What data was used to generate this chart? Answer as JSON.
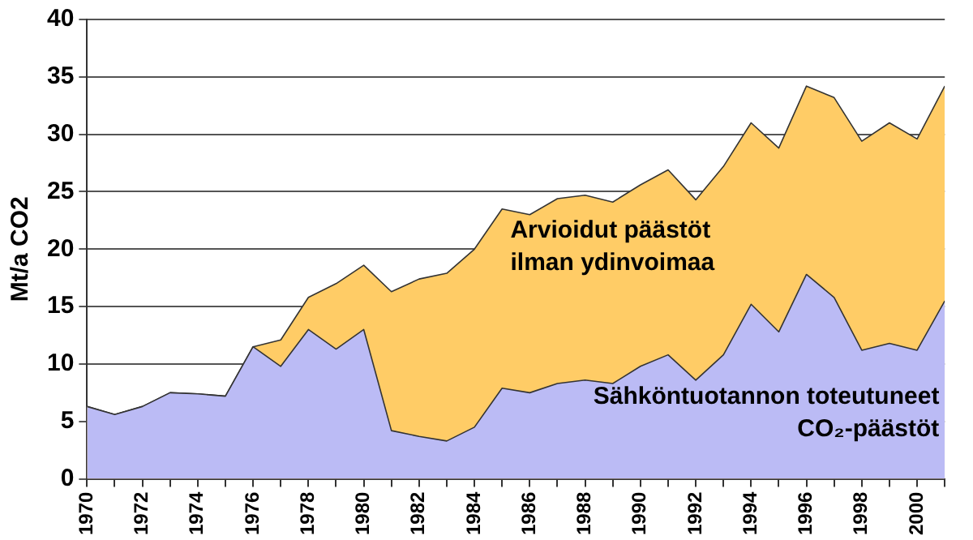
{
  "chart_data": {
    "type": "area",
    "ylabel": "Mt/a CO2",
    "x": [
      1970,
      1971,
      1972,
      1973,
      1974,
      1975,
      1976,
      1977,
      1978,
      1979,
      1980,
      1981,
      1982,
      1983,
      1984,
      1985,
      1986,
      1987,
      1988,
      1989,
      1990,
      1991,
      1992,
      1993,
      1994,
      1995,
      1996,
      1997,
      1998,
      1999,
      2000,
      2001
    ],
    "series": [
      {
        "name": "Arvioidut päästöt\nilman ydinvoimaa",
        "color": "#ffcc66",
        "values": [
          6.3,
          5.6,
          6.3,
          7.5,
          7.4,
          7.2,
          11.5,
          12.1,
          15.8,
          17,
          18.6,
          16.3,
          17.4,
          17.9,
          20,
          23.5,
          23,
          24.4,
          24.7,
          24.1,
          25.6,
          26.9,
          24.3,
          27.2,
          31,
          28.8,
          34.2,
          33.2,
          29.4,
          31,
          29.6,
          34.2
        ]
      },
      {
        "name": "Sähköntuotannon toteutuneet\nCO₂-päästöt",
        "color": "#bbbbf5",
        "values": [
          6.3,
          5.6,
          6.3,
          7.5,
          7.4,
          7.2,
          11.5,
          9.8,
          13,
          11.3,
          13,
          4.2,
          3.7,
          3.3,
          4.5,
          7.9,
          7.5,
          8.3,
          8.6,
          8.3,
          9.8,
          10.8,
          8.6,
          10.8,
          15.2,
          12.8,
          17.8,
          15.8,
          11.2,
          11.8,
          11.2,
          15.5
        ]
      }
    ],
    "xlim": [
      1970,
      2001
    ],
    "xticks": [
      1970,
      {
        "value": 1971,
        "label": null
      },
      1972,
      {
        "value": 1973,
        "label": null
      },
      1974,
      {
        "value": 1975,
        "label": null
      },
      1976,
      {
        "value": 1977,
        "label": null
      },
      1978,
      {
        "value": 1979,
        "label": null
      },
      1980,
      {
        "value": 1981,
        "label": null
      },
      1982,
      {
        "value": 1983,
        "label": null
      },
      1984,
      {
        "value": 1985,
        "label": null
      },
      1986,
      {
        "value": 1987,
        "label": null
      },
      1988,
      {
        "value": 1989,
        "label": null
      },
      1990,
      {
        "value": 1991,
        "label": null
      },
      1992,
      {
        "value": 1993,
        "label": null
      },
      1994,
      {
        "value": 1995,
        "label": null
      },
      1996,
      {
        "value": 1997,
        "label": null
      },
      1998,
      {
        "value": 1999,
        "label": null
      },
      2000,
      {
        "value": 2001,
        "label": null
      }
    ],
    "ylim": [
      0,
      40
    ],
    "yticks": [
      0,
      5,
      10,
      15,
      20,
      25,
      30,
      35,
      40
    ],
    "grid": "y",
    "legend": false
  }
}
